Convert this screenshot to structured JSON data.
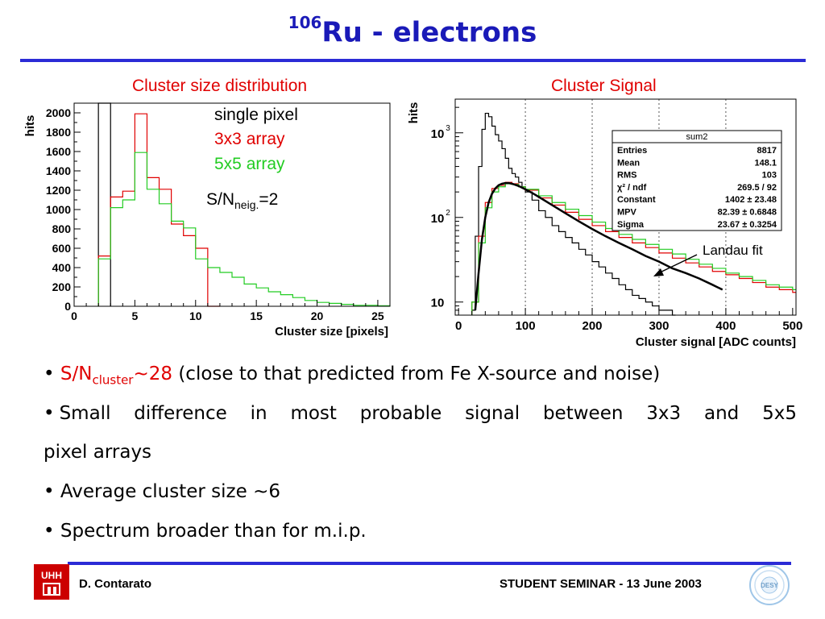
{
  "slide": {
    "title_sup": "106",
    "title_main": "Ru - electrons",
    "bullets": {
      "b1_prefix": "S/N",
      "b1_sub": "cluster",
      "b1_value": "~28",
      "b1_rest": " (close to that predicted from Fe X-source and noise)",
      "b2_line1": "Small difference in most probable signal between 3x3 and 5x5",
      "b2_line2": "pixel arrays",
      "b3": "Average cluster size ~6",
      "b4": "Spectrum broader than for m.i.p."
    },
    "footer": {
      "author": "D. Contarato",
      "event": "STUDENT SEMINAR - 13 June 2003",
      "left_logo_text": "UHH",
      "right_logo_text": "DESY"
    },
    "colors": {
      "title": "#1a1ab8",
      "rule": "#2b2bd6",
      "red": "#e00000",
      "green": "#22cc22"
    }
  },
  "chart_data": [
    {
      "type": "bar",
      "title": "Cluster size distribution",
      "xlabel": "Cluster size [pixels]",
      "ylabel": "hits",
      "xlim": [
        0,
        26
      ],
      "ylim": [
        0,
        2100
      ],
      "x_ticks": [
        "0",
        "5",
        "10",
        "15",
        "20",
        "25"
      ],
      "y_ticks": [
        "0",
        "200",
        "400",
        "600",
        "800",
        "1000",
        "1200",
        "1400",
        "1600",
        "1800",
        "2000"
      ],
      "legend": [
        "single pixel",
        "3x3 array",
        "5x5 array"
      ],
      "annotation_main": "S/N",
      "annotation_sub": "neig.",
      "annotation_tail": "=2",
      "series": [
        {
          "name": "single pixel",
          "color": "#000000",
          "bins": [
            [
              2,
              3,
              8817
            ]
          ]
        },
        {
          "name": "3x3 array",
          "color": "#e00000",
          "bins": [
            [
              2,
              3,
              520
            ],
            [
              3,
              4,
              1130
            ],
            [
              4,
              5,
              1190
            ],
            [
              5,
              6,
              1990
            ],
            [
              6,
              7,
              1330
            ],
            [
              7,
              8,
              1210
            ],
            [
              8,
              9,
              850
            ],
            [
              9,
              10,
              730
            ],
            [
              10,
              11,
              600
            ],
            [
              11,
              12,
              0
            ]
          ]
        },
        {
          "name": "5x5 array",
          "color": "#22cc22",
          "bins": [
            [
              2,
              3,
              490
            ],
            [
              3,
              4,
              1020
            ],
            [
              4,
              5,
              1100
            ],
            [
              5,
              6,
              1590
            ],
            [
              6,
              7,
              1210
            ],
            [
              7,
              8,
              1060
            ],
            [
              8,
              9,
              880
            ],
            [
              9,
              10,
              810
            ],
            [
              10,
              11,
              490
            ],
            [
              11,
              12,
              400
            ],
            [
              12,
              13,
              350
            ],
            [
              13,
              14,
              300
            ],
            [
              14,
              15,
              230
            ],
            [
              15,
              16,
              190
            ],
            [
              16,
              17,
              150
            ],
            [
              17,
              18,
              120
            ],
            [
              18,
              19,
              90
            ],
            [
              19,
              20,
              60
            ],
            [
              20,
              21,
              40
            ],
            [
              21,
              22,
              30
            ],
            [
              22,
              23,
              20
            ],
            [
              23,
              24,
              10
            ],
            [
              24,
              25,
              10
            ],
            [
              25,
              26,
              5
            ]
          ]
        }
      ]
    },
    {
      "type": "line",
      "title": "Cluster Signal",
      "xlabel": "Cluster signal [ADC counts]",
      "ylabel": "hits",
      "xlim": [
        -5,
        505
      ],
      "ylim": [
        7,
        2500
      ],
      "yscale": "log",
      "x_ticks": [
        "0",
        "100",
        "200",
        "300",
        "400",
        "500"
      ],
      "y_ticks": [
        "10",
        "10",
        "10"
      ],
      "y_tick_exps": [
        "",
        "2",
        "3"
      ],
      "annotation": "Landau fit",
      "stats_box": {
        "header": "sum2",
        "rows": [
          [
            "Entries",
            "8817"
          ],
          [
            "Mean",
            "148.1"
          ],
          [
            "RMS",
            "103"
          ],
          [
            "χ² / ndf",
            "269.5 / 92"
          ],
          [
            "Constant",
            "1402 ± 23.48"
          ],
          [
            "MPV",
            "82.39 ± 0.6848"
          ],
          [
            "Sigma",
            "23.67 ± 0.3254"
          ]
        ]
      },
      "series": [
        {
          "name": "single pixel",
          "color": "#000000",
          "x": [
            20,
            25,
            30,
            35,
            40,
            45,
            50,
            55,
            60,
            65,
            70,
            75,
            80,
            85,
            90,
            95,
            100,
            110,
            120,
            130,
            140,
            150,
            160,
            170,
            180,
            190,
            200,
            210,
            220,
            230,
            240,
            250,
            260,
            270,
            280,
            290,
            300,
            310,
            320
          ],
          "y": [
            8,
            60,
            400,
            1100,
            1700,
            1550,
            1200,
            950,
            800,
            650,
            500,
            380,
            330,
            300,
            260,
            230,
            200,
            160,
            120,
            100,
            80,
            68,
            58,
            50,
            42,
            36,
            30,
            26,
            22,
            19,
            16,
            14,
            12,
            11,
            10,
            9,
            8,
            8,
            7
          ]
        },
        {
          "name": "3x3 array",
          "color": "#e00000",
          "x": [
            20,
            30,
            40,
            50,
            60,
            70,
            80,
            90,
            100,
            120,
            140,
            160,
            180,
            200,
            220,
            240,
            260,
            280,
            300,
            320,
            340,
            360,
            380,
            400,
            420,
            440,
            460,
            480,
            500
          ],
          "y": [
            10,
            60,
            150,
            220,
            240,
            260,
            250,
            230,
            210,
            170,
            140,
            115,
            95,
            80,
            68,
            58,
            50,
            44,
            38,
            33,
            29,
            26,
            23,
            21,
            19,
            17,
            15,
            14,
            13
          ]
        },
        {
          "name": "5x5 array",
          "color": "#22cc22",
          "x": [
            20,
            30,
            40,
            50,
            60,
            70,
            80,
            90,
            100,
            120,
            140,
            160,
            180,
            200,
            220,
            240,
            260,
            280,
            300,
            320,
            340,
            360,
            380,
            400,
            420,
            440,
            460,
            480,
            500
          ],
          "y": [
            10,
            50,
            130,
            200,
            230,
            250,
            245,
            230,
            215,
            180,
            150,
            125,
            105,
            88,
            74,
            63,
            55,
            48,
            42,
            37,
            32,
            28,
            25,
            22,
            20,
            18,
            16,
            15,
            14
          ]
        },
        {
          "name": "Landau fit",
          "color": "#000000",
          "x": [
            25,
            30,
            35,
            40,
            45,
            50,
            55,
            60,
            65,
            70,
            75,
            80,
            85,
            90,
            100,
            110,
            120,
            140,
            160,
            180,
            200,
            220,
            240,
            260,
            280,
            300,
            320,
            340,
            360,
            380,
            395
          ],
          "y": [
            8,
            22,
            55,
            100,
            150,
            190,
            220,
            240,
            250,
            255,
            255,
            250,
            243,
            235,
            215,
            195,
            175,
            140,
            112,
            90,
            73,
            60,
            50,
            42,
            35,
            30,
            25,
            22,
            19,
            16,
            14
          ]
        }
      ]
    }
  ]
}
